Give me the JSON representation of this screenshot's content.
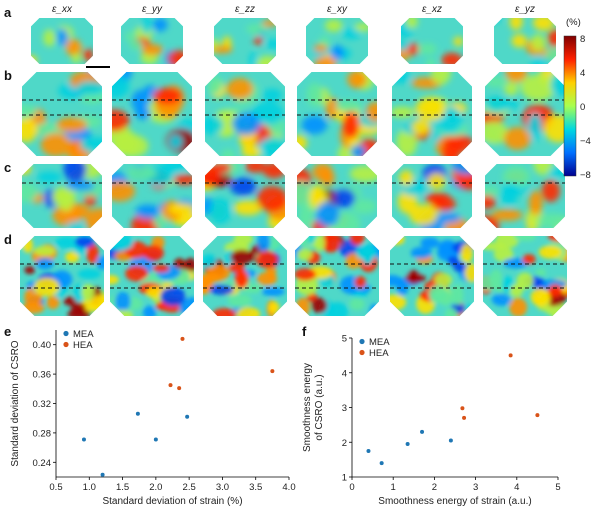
{
  "panel_labels": {
    "a": "a",
    "b": "b",
    "c": "c",
    "d": "d",
    "e": "e",
    "f": "f"
  },
  "columns": [
    "ε_xx",
    "ε_yy",
    "ε_zz",
    "ε_xy",
    "ε_xz",
    "ε_yz"
  ],
  "colorbar": {
    "unit": "(%)",
    "ticks": [
      "8",
      "4",
      "0",
      "−4",
      "−8"
    ],
    "min": -8,
    "max": 8,
    "colors": [
      "#7f0000",
      "#ff2000",
      "#ffd000",
      "#a8ff50",
      "#00d8e0",
      "#0070ff",
      "#000090"
    ]
  },
  "chart_data": [
    {
      "type": "scatter",
      "panel": "e",
      "xlabel": "Standard deviation of strain (%)",
      "ylabel": "Standard deviation of CSRO",
      "xlim": [
        0.5,
        4.0
      ],
      "ylim": [
        0.22,
        0.42
      ],
      "xticks": [
        "0.5",
        "1.0",
        "1.5",
        "2.0",
        "2.5",
        "3.0",
        "3.5",
        "4.0"
      ],
      "yticks": [
        "0.24",
        "0.28",
        "0.32",
        "0.36",
        "0.40"
      ],
      "legend_position": "top-left",
      "series": [
        {
          "name": "MEA",
          "color": "#1f77b4",
          "points": [
            [
              0.92,
              0.271
            ],
            [
              1.2,
              0.223
            ],
            [
              1.73,
              0.306
            ],
            [
              2.0,
              0.271
            ],
            [
              2.47,
              0.302
            ]
          ]
        },
        {
          "name": "HEA",
          "color": "#d95319",
          "points": [
            [
              2.22,
              0.345
            ],
            [
              2.35,
              0.341
            ],
            [
              2.4,
              0.408
            ],
            [
              3.75,
              0.364
            ]
          ]
        }
      ]
    },
    {
      "type": "scatter",
      "panel": "f",
      "xlabel": "Smoothness energy of strain (a.u.)",
      "ylabel": "Smoothness energy\nof CSRO (a.u.)",
      "xlim": [
        0,
        5
      ],
      "ylim": [
        1,
        5
      ],
      "xticks": [
        "0",
        "1",
        "2",
        "3",
        "4",
        "5"
      ],
      "yticks": [
        "1",
        "2",
        "3",
        "4",
        "5"
      ],
      "legend_position": "top-left",
      "series": [
        {
          "name": "MEA",
          "color": "#1f77b4",
          "points": [
            [
              0.4,
              1.75
            ],
            [
              0.72,
              1.4
            ],
            [
              1.35,
              1.95
            ],
            [
              1.7,
              2.3
            ],
            [
              2.4,
              2.05
            ]
          ]
        },
        {
          "name": "HEA",
          "color": "#d95319",
          "points": [
            [
              2.68,
              2.98
            ],
            [
              2.72,
              2.7
            ],
            [
              3.85,
              4.5
            ],
            [
              4.5,
              2.78
            ]
          ]
        }
      ]
    }
  ]
}
